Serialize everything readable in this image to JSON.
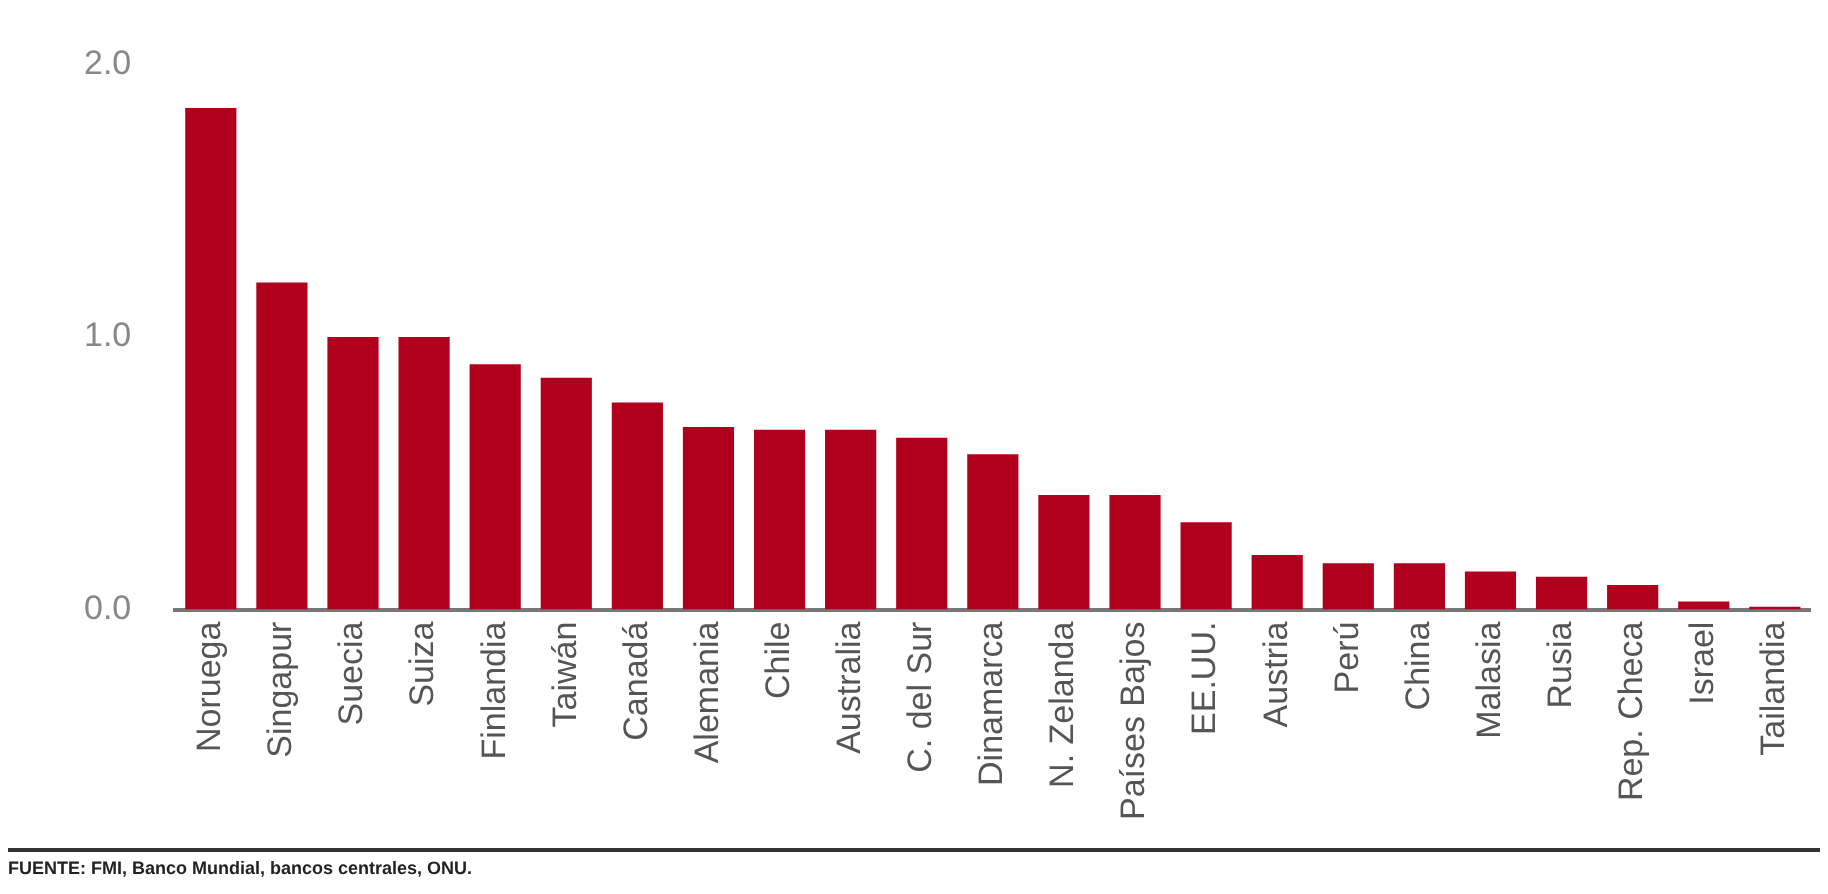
{
  "chart_data": {
    "type": "bar",
    "categories": [
      "Noruega",
      "Singapur",
      "Suecia",
      "Suiza",
      "Finlandia",
      "Taiwán",
      "Canadá",
      "Alemania",
      "Chile",
      "Australia",
      "C. del Sur",
      "Dinamarca",
      "N. Zelanda",
      "Países Bajos",
      "EE.UU.",
      "Austria",
      "Perú",
      "China",
      "Malasia",
      "Rusia",
      "Rep. Checa",
      "Israel",
      "Tailandia"
    ],
    "values": [
      1.84,
      1.2,
      1.0,
      1.0,
      0.9,
      0.85,
      0.76,
      0.67,
      0.66,
      0.66,
      0.63,
      0.57,
      0.42,
      0.42,
      0.32,
      0.2,
      0.17,
      0.17,
      0.14,
      0.12,
      0.09,
      0.03,
      0.01
    ],
    "color": "#b0001e",
    "ylim": [
      0,
      2.0
    ],
    "yticks": [
      {
        "value": 0,
        "label": "0.0"
      },
      {
        "value": 1,
        "label": "1.0"
      },
      {
        "value": 2,
        "label": "2.0"
      }
    ],
    "annotations": [
      "FUENTE: FMI, Banco Mundial, bancos centrales, ONU."
    ]
  }
}
